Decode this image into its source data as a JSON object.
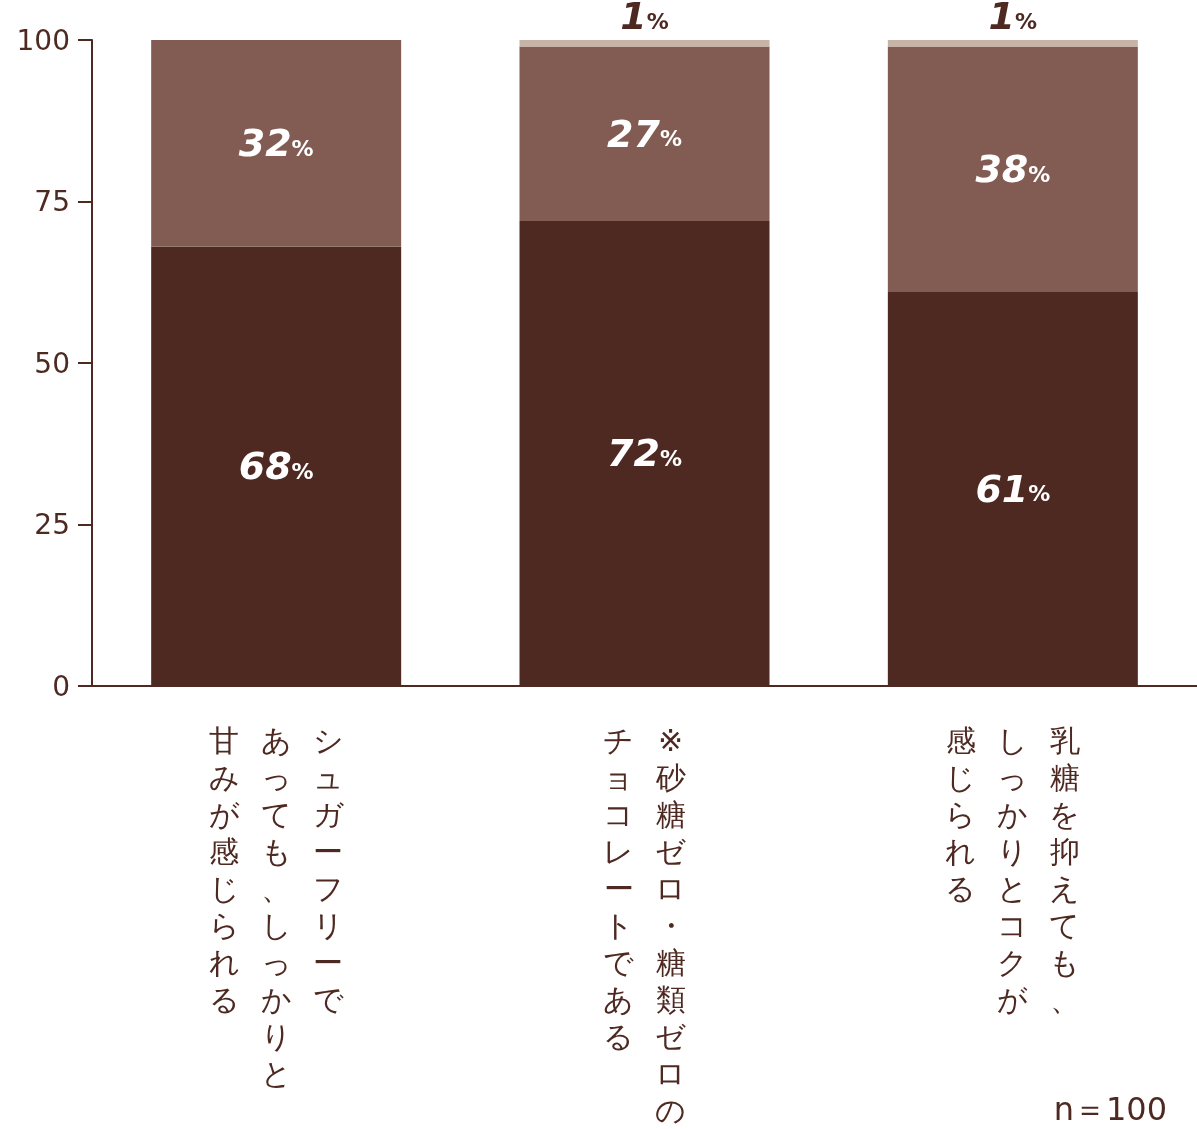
{
  "chart_data": {
    "type": "bar",
    "stacked": true,
    "categories": [
      "シュガーフリーであっても、しっかりと甘みが感じられる",
      "※砂糖ゼロ・糖類ゼロのチョコレートである",
      "乳糖を抑えても、しっかりとコクが感じられる"
    ],
    "series": [
      {
        "color": "#4e2922",
        "values": [
          68,
          72,
          61
        ],
        "value_labels": [
          "68%",
          "72%",
          "61%"
        ]
      },
      {
        "color": "#825c52",
        "values": [
          32,
          27,
          38
        ],
        "value_labels": [
          "32%",
          "27%",
          "38%"
        ]
      },
      {
        "color": "#c8b4a6",
        "values": [
          0,
          1,
          1
        ],
        "value_labels": [
          null,
          "1%",
          "1%"
        ]
      }
    ],
    "ylim": [
      0,
      100
    ],
    "yticks": [
      0,
      25,
      50,
      75,
      100
    ],
    "grid": false,
    "annotations": [
      "n＝100"
    ]
  }
}
